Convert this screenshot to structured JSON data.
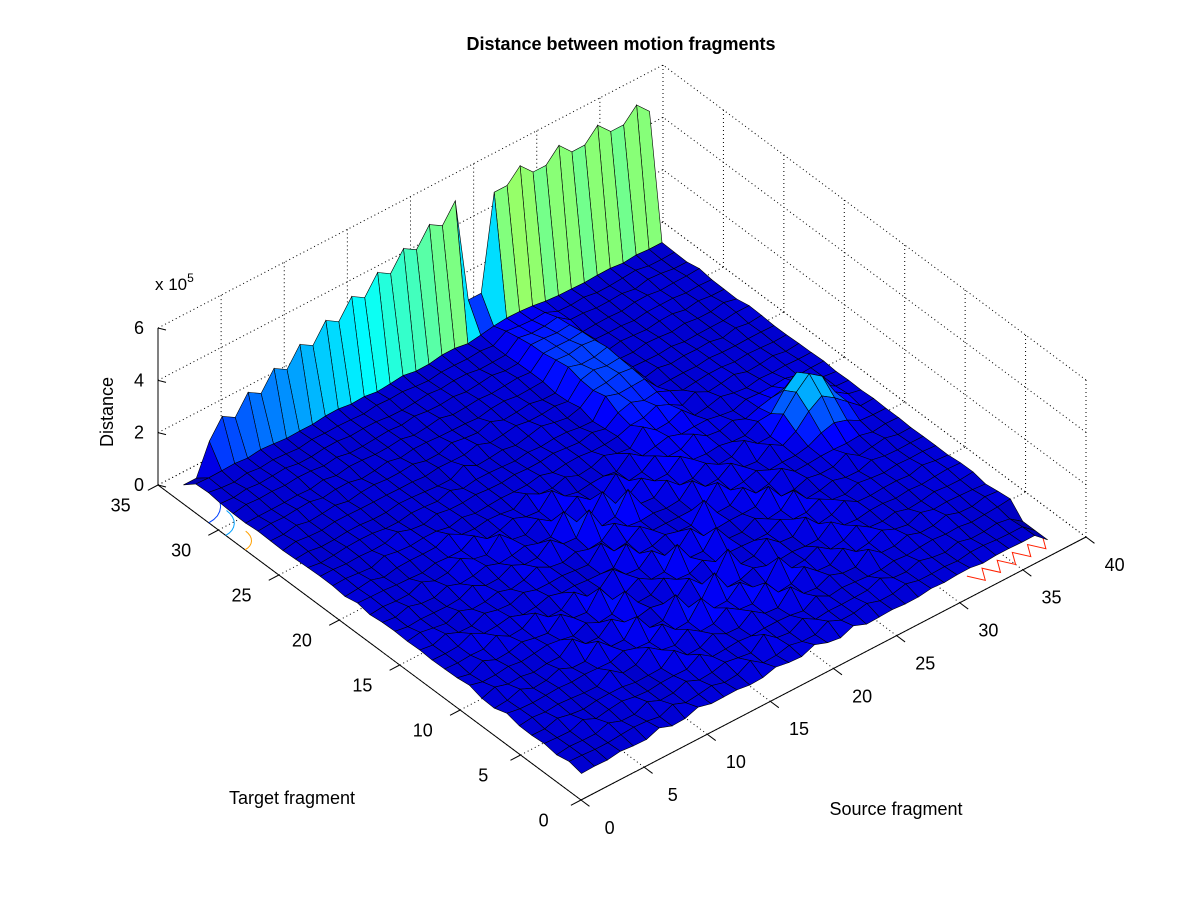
{
  "chart_data": {
    "type": "surface",
    "title": "Distance between motion fragments",
    "xlabel": "Source fragment",
    "ylabel": "Target fragment",
    "zlabel": "Distance",
    "z_multiplier_label": "x 10",
    "z_multiplier_exponent": "5",
    "xlim": [
      0,
      40
    ],
    "ylim": [
      0,
      35
    ],
    "zlim": [
      0,
      600000
    ],
    "x_ticks": [
      "0",
      "5",
      "10",
      "15",
      "20",
      "25",
      "30",
      "35",
      "40"
    ],
    "y_ticks": [
      "0",
      "5",
      "10",
      "15",
      "20",
      "25",
      "30",
      "35"
    ],
    "z_ticks": [
      "0",
      "2",
      "4",
      "6"
    ],
    "grid": true,
    "colormap": "jet",
    "contour_on_floor": true,
    "x_count": 37,
    "y_count": 33,
    "features": {
      "baseline_distance": 40000,
      "ridge_along_last_target_row_peak": 530000,
      "ridge_along_last_target_row_low": 150000,
      "secondary_peak_source_33_target_16": 170000,
      "bump_amplitude_center": 100000
    }
  },
  "colors": {
    "background": "#ffffff",
    "surface_low": "#0000ff",
    "surface_high": "#ff0000",
    "grid": "#000000"
  }
}
